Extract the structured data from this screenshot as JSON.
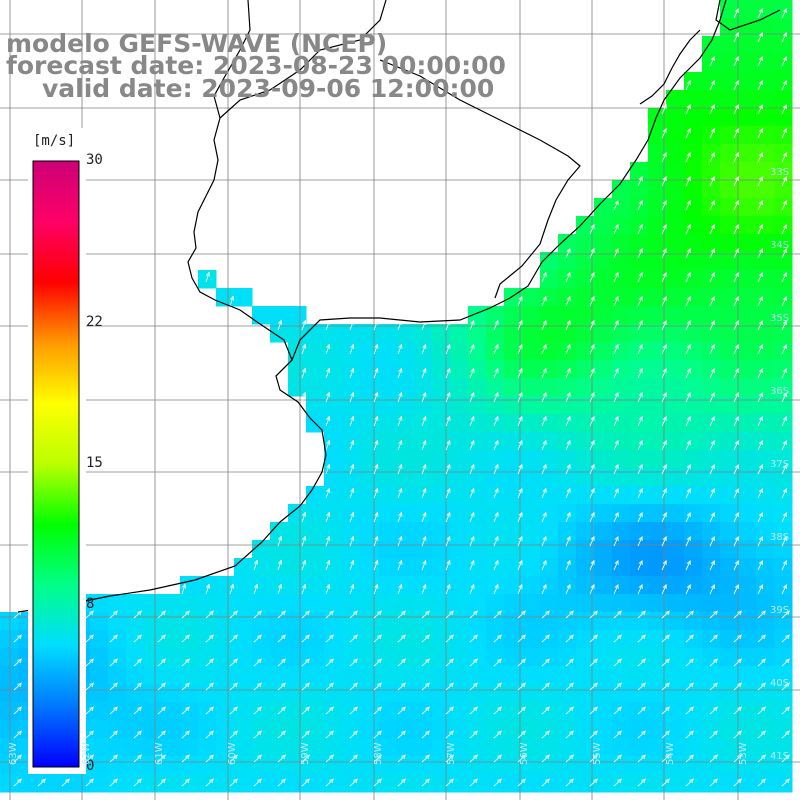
{
  "title": {
    "line1": "modelo GEFS-WAVE (NCEP)",
    "line2": "forecast date: 2023-08-23 00:00:00",
    "line3": "valid date: 2023-09-06 12:00:00"
  },
  "colorbar": {
    "unit": "[m/s]",
    "ticks": [
      "30",
      "22",
      "15",
      "8",
      "0"
    ],
    "tick_values": [
      30,
      22,
      15,
      8,
      0
    ],
    "min": 0,
    "max": 30,
    "colors": [
      "#0000ff",
      "#0077ff",
      "#00ddff",
      "#00ff88",
      "#00ff00",
      "#bbff00",
      "#ffff00",
      "#ff9900",
      "#ff0000",
      "#ff0066",
      "#cc0077"
    ]
  },
  "map": {
    "lat_labels": [
      "33S",
      "34S",
      "35S",
      "36S",
      "37S",
      "38S",
      "39S",
      "40S",
      "41S"
    ],
    "lon_labels": [
      "63W",
      "62W",
      "61W",
      "60W",
      "59W",
      "58W",
      "57W",
      "56W",
      "55W",
      "54W",
      "53W"
    ],
    "colors": {
      "land": "#ffffff",
      "coastline": "#000000",
      "grid": "#808080",
      "arrow": "#ffffff"
    }
  }
}
